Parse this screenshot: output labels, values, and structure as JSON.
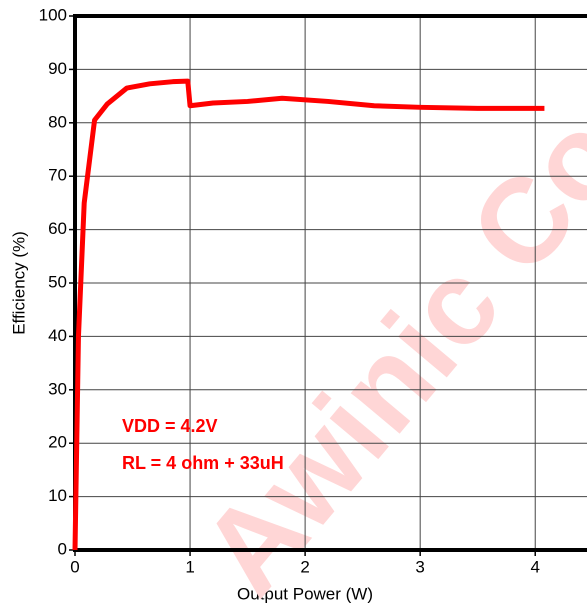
{
  "chart_data": {
    "type": "line",
    "xlabel": "Output Power (W)",
    "ylabel": "Efficiency (%)",
    "annotations": [
      "VDD = 4.2V",
      "RL = 4 ohm + 33uH"
    ],
    "watermark": "Awinic Co",
    "x": [
      0,
      0.03,
      0.08,
      0.17,
      0.28,
      0.45,
      0.65,
      0.85,
      0.98,
      1.0,
      1.2,
      1.5,
      1.8,
      2.2,
      2.6,
      3.0,
      3.5,
      4.08
    ],
    "series": [
      {
        "color": "#ff0000",
        "values": [
          0,
          40,
          65,
          80.5,
          83.5,
          86.5,
          87.3,
          87.7,
          87.8,
          83.2,
          83.7,
          84,
          84.6,
          84,
          83.2,
          82.9,
          82.7,
          82.7
        ]
      }
    ],
    "xlim": [
      0,
      4.45
    ],
    "xticks": [
      0,
      1,
      2,
      3,
      4
    ],
    "ylim": [
      0,
      100
    ],
    "yticks": [
      0,
      10,
      20,
      30,
      40,
      50,
      60,
      70,
      80,
      90,
      100
    ],
    "grid": true
  }
}
